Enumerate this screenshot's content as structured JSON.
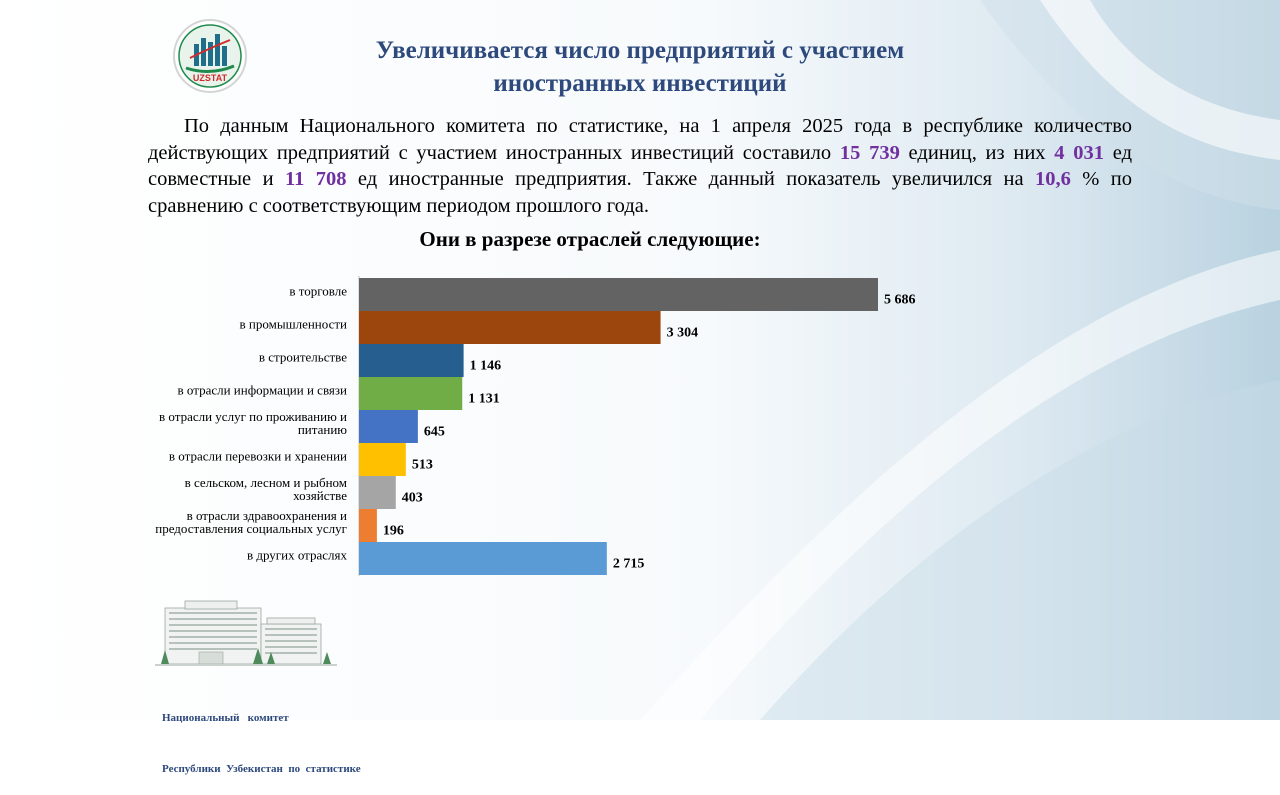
{
  "header": {
    "logo_text": "UZSTAT",
    "title_line1": "Увеличивается число предприятий с участием",
    "title_line2": "иностранных инвестиций"
  },
  "paragraph": {
    "t1": "По данным Национального комитета по статистике, на 1 апреля 2025 года в республике количество действующих предприятий с участием иностранных инвестиций составило ",
    "v1": "15 739",
    "t2": " единиц, из них ",
    "v2": "4 031",
    "t3": " ед совместные и ",
    "v3": "11 708",
    "t4": " ед иностранные предприятия. Также данный показатель увеличился на ",
    "v4": "10,6",
    "t5": " % по сравнению с соответствующим периодом прошлого года."
  },
  "subtitle": "Они в разрезе отраслей следующие:",
  "chart_data": {
    "type": "bar",
    "orientation": "horizontal",
    "categories": [
      [
        "в торговле"
      ],
      [
        "в промышленности"
      ],
      [
        "в строительстве"
      ],
      [
        "в отрасли информации  и связи"
      ],
      [
        "в отрасли услуг по проживанию  и",
        "питанию"
      ],
      [
        "в отрасли перевозки и хранении"
      ],
      [
        "в сельском, лесном и рыбном",
        "хозяйстве"
      ],
      [
        "в отрасли здравоохранения  и",
        "предоставления социальных услуг"
      ],
      [
        "в других отраслях"
      ]
    ],
    "values": [
      5686,
      3304,
      1146,
      1131,
      645,
      513,
      403,
      196,
      2715
    ],
    "value_labels": [
      "5 686",
      "3 304",
      "1 146",
      "1 131",
      "645",
      "513",
      "403",
      "196",
      "2 715"
    ],
    "colors": [
      "#636363",
      "#9c460e",
      "#265f8f",
      "#70ad47",
      "#4472c4",
      "#ffc000",
      "#a5a5a5",
      "#ed7d31",
      "#5b9bd5"
    ],
    "xlim": [
      0,
      5686
    ],
    "grid": false,
    "legend": false
  },
  "footer": {
    "line1": "Национальный   комитет",
    "line2": "Республики  Узбекистан  по  статистике"
  }
}
